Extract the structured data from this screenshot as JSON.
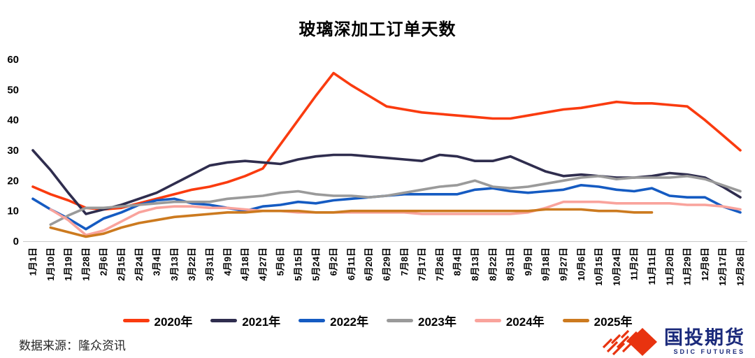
{
  "chart_data": {
    "type": "line",
    "title": "玻璃深加工订单天数",
    "xlabel": "",
    "ylabel": "",
    "ylim": [
      0,
      60
    ],
    "y_ticks": [
      0,
      10,
      20,
      30,
      40,
      50,
      60
    ],
    "grid": false,
    "legend_position": "bottom",
    "x_labels": [
      "1月1日",
      "1月10日",
      "1月19日",
      "1月28日",
      "2月6日",
      "2月15日",
      "2月24日",
      "3月4日",
      "3月13日",
      "3月22日",
      "3月31日",
      "4月9日",
      "4月18日",
      "4月27日",
      "5月6日",
      "5月15日",
      "5月24日",
      "6月2日",
      "6月11日",
      "6月20日",
      "6月29日",
      "7月8日",
      "7月17日",
      "7月26日",
      "8月4日",
      "8月13日",
      "8月22日",
      "8月31日",
      "9月9日",
      "9月18日",
      "9月27日",
      "10月6日",
      "10月15日",
      "10月24日",
      "11月2日",
      "11月11日",
      "11月20日",
      "11月29日",
      "12月8日",
      "12月17日",
      "12月26日"
    ],
    "series": [
      {
        "name": "2020年",
        "color": "#fa3b0f",
        "values": [
          18,
          15.5,
          13.5,
          11,
          10.5,
          11,
          12.5,
          14,
          15.5,
          17,
          18,
          19.5,
          21.5,
          24,
          32,
          40,
          48,
          55.5,
          51.5,
          48,
          44.5,
          43.5,
          42.5,
          42,
          41.5,
          41,
          40.5,
          40.5,
          41.5,
          42.5,
          43.5,
          44,
          45,
          46,
          45.5,
          45.5,
          45,
          44.5,
          40,
          35,
          30
        ]
      },
      {
        "name": "2021年",
        "color": "#2f2d4e",
        "values": [
          30,
          23.5,
          16,
          9,
          10.5,
          12,
          14,
          16,
          19,
          22,
          25,
          26,
          26.5,
          26,
          25.5,
          27,
          28,
          28.5,
          28.5,
          28,
          27.5,
          27,
          26.5,
          28.5,
          28,
          26.5,
          26.5,
          28,
          25.5,
          23,
          21.5,
          22,
          21.5,
          21,
          21,
          21.5,
          22.5,
          22,
          21,
          18,
          14.5
        ]
      },
      {
        "name": "2022年",
        "color": "#155bc2",
        "values": [
          14,
          10.5,
          7.5,
          4,
          7.5,
          9.5,
          12,
          13.5,
          14,
          12.5,
          12,
          11,
          10,
          11.5,
          12,
          13,
          12.5,
          13.5,
          14,
          14.5,
          15,
          15.5,
          15.5,
          15.5,
          15.5,
          17,
          17.5,
          16.5,
          16,
          16.5,
          17,
          18.5,
          18,
          17,
          16.5,
          17.5,
          15,
          14.5,
          14.5,
          11.5,
          9.5
        ]
      },
      {
        "name": "2023年",
        "color": "#9a9a9a",
        "values": [
          null,
          5.5,
          8.5,
          11,
          11,
          11.5,
          12,
          12.5,
          13,
          13,
          13,
          14,
          14.5,
          15,
          16,
          16.5,
          15.5,
          15,
          15,
          14.5,
          15,
          16,
          17,
          18,
          18.5,
          20,
          18,
          17.5,
          18,
          19,
          20,
          21,
          21.5,
          20.5,
          21,
          21,
          21,
          21.5,
          20.5,
          18.5,
          16.5
        ]
      },
      {
        "name": "2024年",
        "color": "#f9a39c",
        "values": [
          null,
          10.5,
          7,
          2,
          3.5,
          6.5,
          9.5,
          11,
          11.5,
          11.5,
          11,
          11,
          10.5,
          10,
          10,
          9.5,
          9.5,
          9.5,
          9.5,
          9.5,
          9.5,
          9.5,
          9,
          9,
          9,
          9,
          9,
          9,
          9.5,
          11,
          13,
          13,
          13,
          12.5,
          12.5,
          12.5,
          12.5,
          12,
          12,
          11.5,
          10.5
        ]
      },
      {
        "name": "2025年",
        "color": "#cc7a1f",
        "values": [
          null,
          4.5,
          3,
          1.5,
          2.5,
          4.5,
          6,
          7,
          8,
          8.5,
          9,
          9.5,
          9.5,
          10,
          10,
          10,
          9.5,
          9.5,
          10,
          10,
          10,
          10,
          10,
          10,
          10,
          10,
          10,
          10,
          10,
          10.5,
          10.5,
          10.5,
          10,
          10,
          9.5,
          9.5,
          null,
          null,
          null,
          null,
          null
        ]
      }
    ]
  },
  "footer": {
    "source_note": "数据来源：隆众资讯"
  },
  "logo": {
    "name_cn": "国投期货",
    "name_en": "SDIC FUTURES",
    "accent_color": "#e8330f",
    "text_color": "#1b2a7b"
  }
}
